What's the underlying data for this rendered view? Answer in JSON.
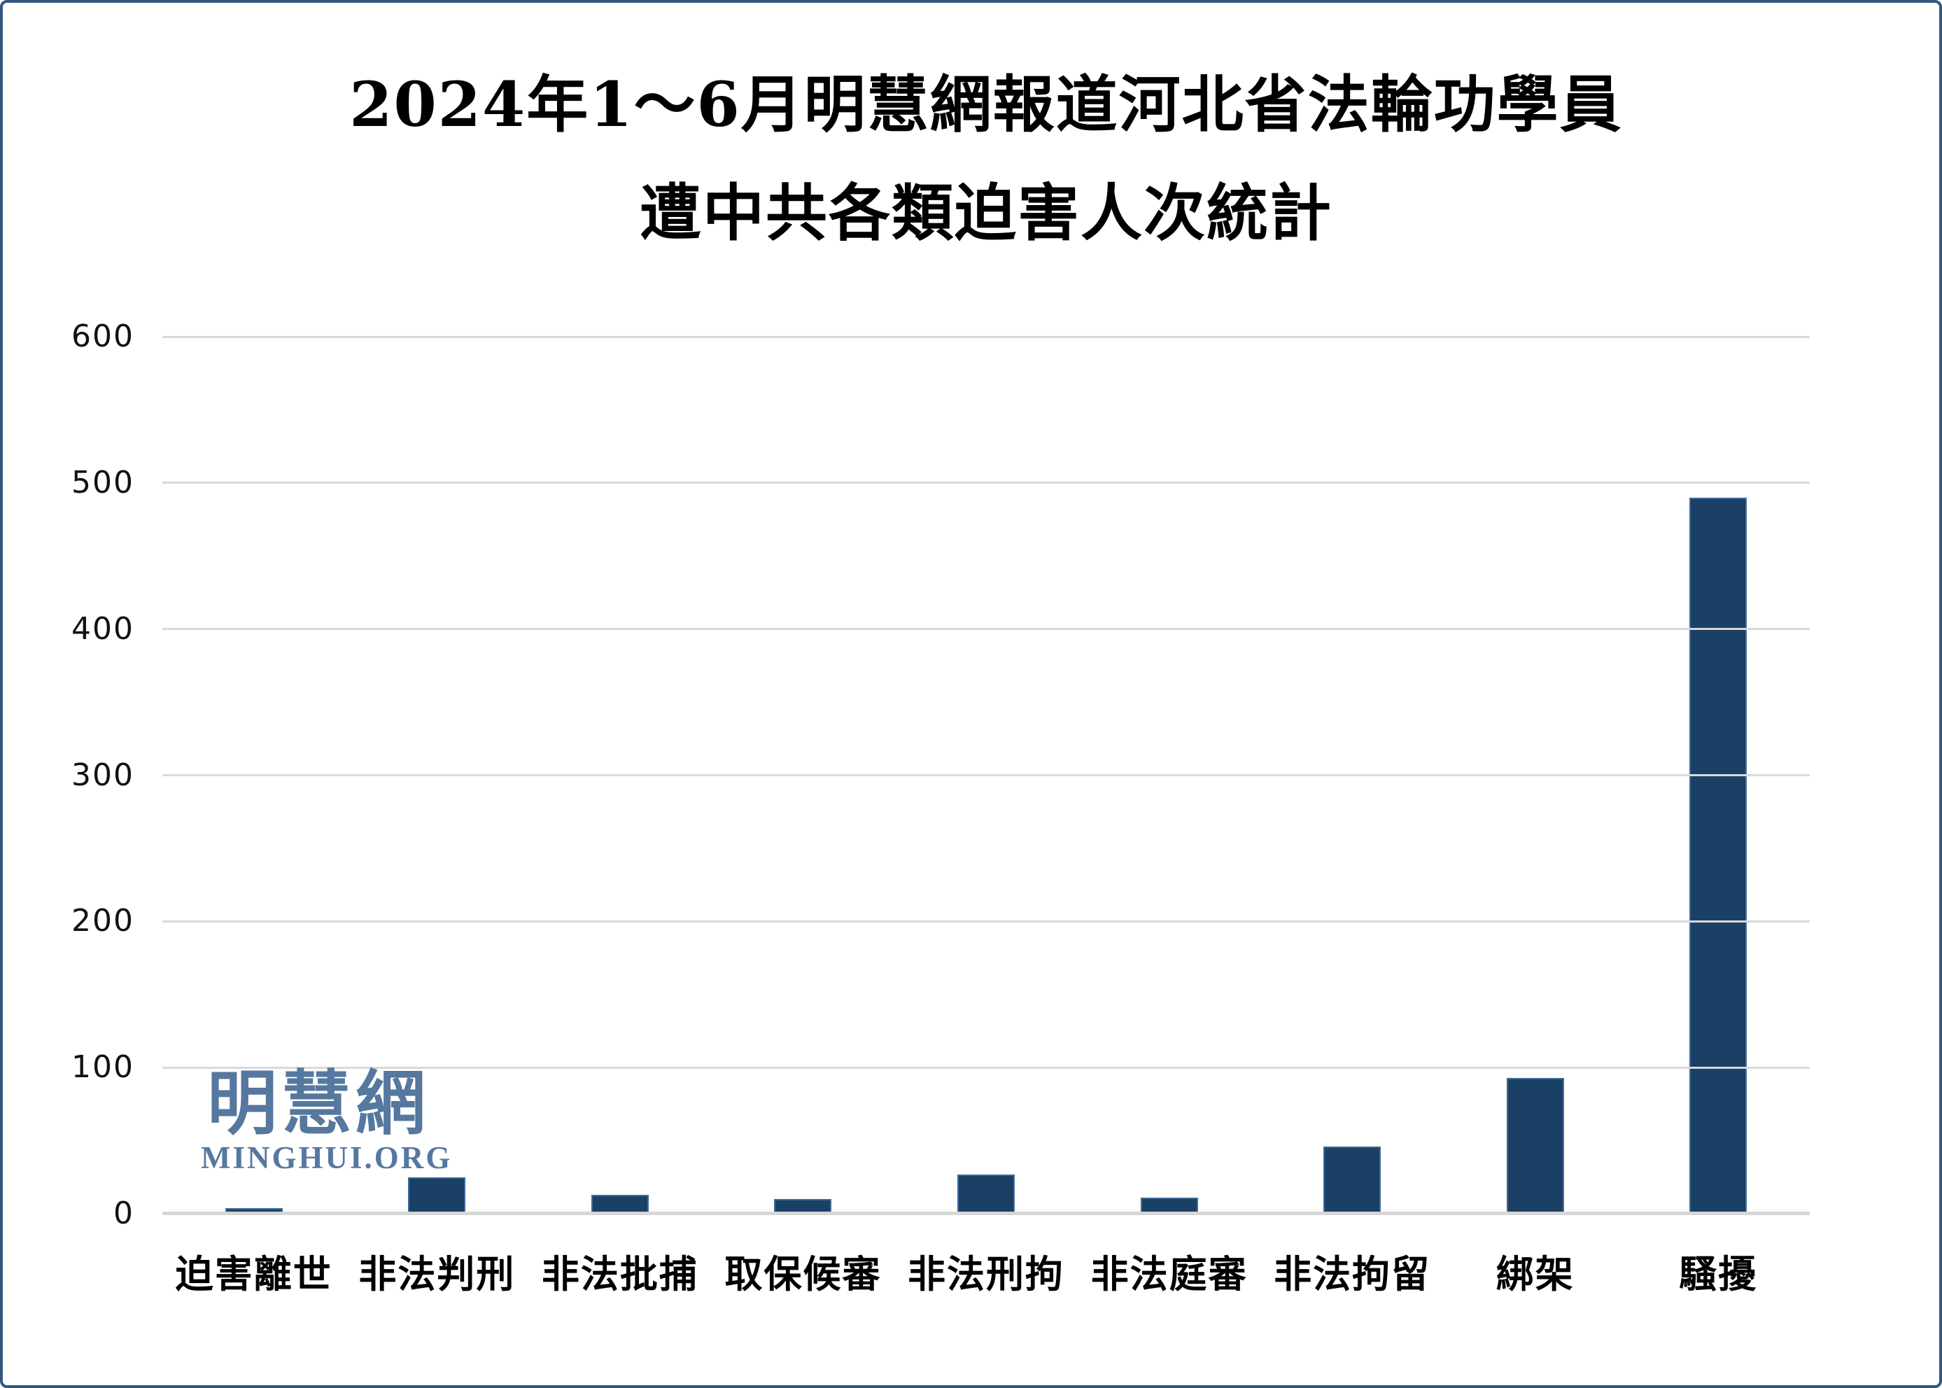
{
  "page": {
    "background": "#ffffff",
    "border_color": "#31587f"
  },
  "title": {
    "line1": "2024年1～6月明慧網報道河北省法輪功學員",
    "line2": "遭中共各類迫害人次統計"
  },
  "watermark": {
    "cjk": "明慧網",
    "latin": "MINGHUI.ORG",
    "color": "#56789f"
  },
  "chart_data": {
    "type": "bar",
    "title": "2024年1～6月明慧網報道河北省法輪功學員遭中共各類迫害人次統計",
    "categories": [
      "迫害離世",
      "非法判刑",
      "非法批捕",
      "取保候審",
      "非法刑拘",
      "非法庭審",
      "非法拘留",
      "綁架",
      "騷擾"
    ],
    "values": [
      4,
      25,
      13,
      10,
      27,
      11,
      46,
      93,
      490
    ],
    "xlabel": "",
    "ylabel": "",
    "ylim": [
      0,
      600
    ],
    "yticks": [
      0,
      100,
      200,
      300,
      400,
      500,
      600
    ],
    "grid": true,
    "legend": "none",
    "bar_color": "#1b4065",
    "bar_edge_color": "#3f6c9a",
    "gridline_color": "#d9d9d9"
  }
}
